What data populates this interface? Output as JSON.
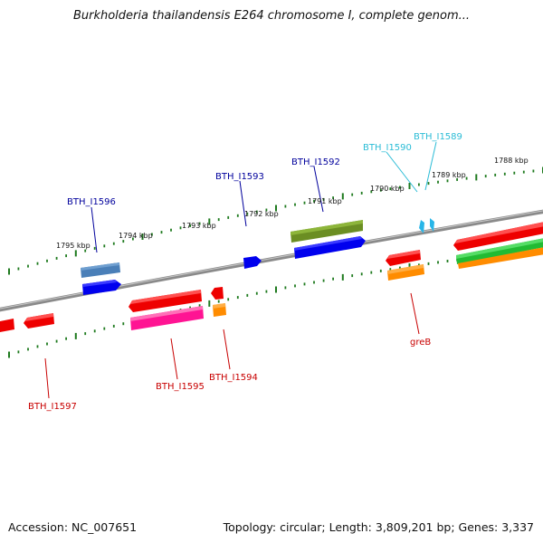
{
  "title": "Burkholderia thailandensis E264 chromosome I, complete genom...",
  "footer": {
    "accession": "Accession: NC_007651",
    "topology": "Topology: circular; Length: 3,809,201 bp; Genes: 3,337"
  },
  "scale_labels": [
    "1795 kbp",
    "1794 kbp",
    "1793 kbp",
    "1792 kbp",
    "1791 kbp",
    "1790 kbp",
    "1789 kbp",
    "1788 kbp"
  ],
  "gene_labels": [
    {
      "name": "BTH_I1596",
      "color": "#00009c"
    },
    {
      "name": "BTH_I1593",
      "color": "#00009c"
    },
    {
      "name": "BTH_I1592",
      "color": "#00009c"
    },
    {
      "name": "BTH_I1590",
      "color": "#2bbcd6"
    },
    {
      "name": "BTH_I1589",
      "color": "#2bbcd6"
    },
    {
      "name": "BTH_I1597",
      "color": "#c80000"
    },
    {
      "name": "BTH_I1595",
      "color": "#c80000"
    },
    {
      "name": "BTH_I1594",
      "color": "#c80000"
    },
    {
      "name": "greB",
      "color": "#c80000"
    }
  ],
  "colors": {
    "backbone": "#8a8a8a",
    "ticks": "#1e7a1e",
    "steel_blue": "#4a7fb8",
    "blue": "#0000ee",
    "olive": "#6b8e23",
    "red": "#ee0000",
    "orange": "#ff8c00",
    "pink": "#ff1493",
    "green": "#22bb33",
    "cyan": "#29b6e8"
  }
}
